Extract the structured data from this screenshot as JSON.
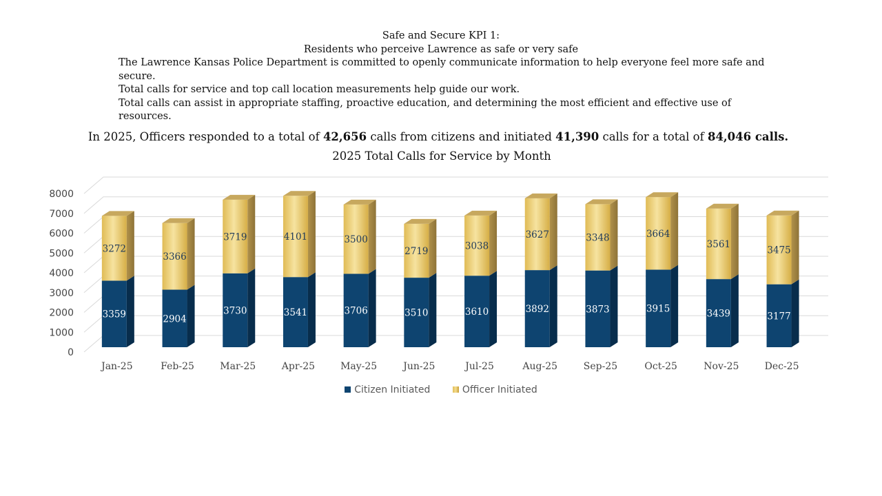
{
  "header": {
    "kpi_title": "Safe and Secure KPI 1:",
    "kpi_subtitle": "Residents who perceive Lawrence as safe or very safe",
    "paragraphs": [
      "The Lawrence Kansas Police Department is committed to openly communicate information to help everyone feel more safe and secure.",
      "Total calls for service and top call location measurements help guide our work.",
      "Total calls can assist in appropriate staffing, proactive education, and determining the most efficient and effective use of resources."
    ]
  },
  "summary": {
    "part1": "In 2025, Officers responded to a total of ",
    "citizen_total": "42,656",
    "part2": " calls from citizens and initiated ",
    "officer_total": "41,390",
    "part3": " calls for a total of ",
    "grand_total": "84,046 calls."
  },
  "colors": {
    "citizen_front": "#0e4470",
    "citizen_side": "#082d4c",
    "citizen_top": "#1b5a8c",
    "officer_light": "#f3dc8f",
    "officer_mid": "#e3bf5a",
    "officer_dark": "#c99d35",
    "officer_side": "#a88a45",
    "officer_top": "#c7a85e",
    "grid": "#d9d9d9",
    "axis_text": "#444444",
    "label_citizen": "#ffffff",
    "label_officer": "#1f3a5a"
  },
  "chart_data": {
    "type": "bar",
    "stacked": true,
    "three_d": true,
    "title": "2025 Total Calls for Service by Month",
    "categories": [
      "Jan-25",
      "Feb-25",
      "Mar-25",
      "Apr-25",
      "May-25",
      "Jun-25",
      "Jul-25",
      "Aug-25",
      "Sep-25",
      "Oct-25",
      "Nov-25",
      "Dec-25"
    ],
    "series": [
      {
        "name": "Citizen Initiated",
        "values": [
          3359,
          2904,
          3730,
          3541,
          3706,
          3510,
          3610,
          3892,
          3873,
          3915,
          3439,
          3177
        ]
      },
      {
        "name": "Officer Initiated",
        "values": [
          3272,
          3366,
          3719,
          4101,
          3500,
          2719,
          3038,
          3627,
          3348,
          3664,
          3561,
          3475
        ]
      }
    ],
    "ylim": [
      0,
      8000
    ],
    "yticks": [
      0,
      1000,
      2000,
      3000,
      4000,
      5000,
      6000,
      7000,
      8000
    ],
    "grid": true,
    "legend_position": "bottom",
    "xlabel": "",
    "ylabel": ""
  }
}
